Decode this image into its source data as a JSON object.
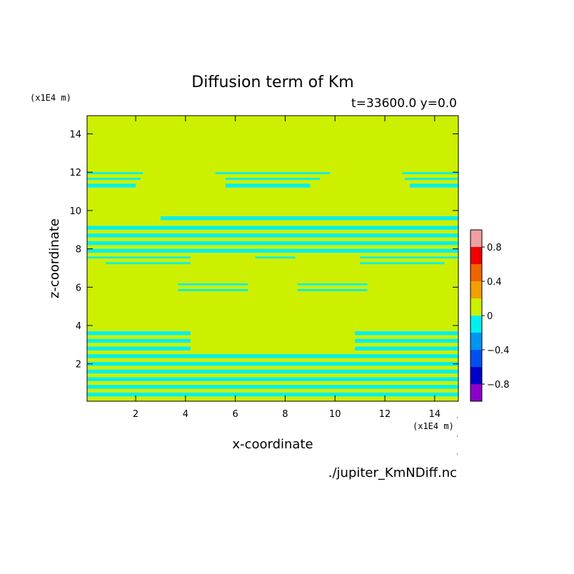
{
  "chart_data": {
    "type": "heatmap",
    "title": "Diffusion term of Km",
    "subtitle": "t=33600.0 y=0.0",
    "xlabel": "x-coordinate",
    "ylabel": "z-coordinate",
    "x_unit": "(x1E4 m)",
    "y_unit": "(x1E4 m)",
    "xlim": [
      0.05,
      14.95
    ],
    "ylim": [
      0.05,
      14.95
    ],
    "x_ticks": [
      2,
      4,
      6,
      8,
      10,
      12,
      14
    ],
    "y_ticks": [
      2,
      4,
      6,
      8,
      10,
      12,
      14
    ],
    "x_tick_labels": [
      "2",
      "4",
      "6",
      "8",
      "10",
      "12",
      "14"
    ],
    "y_tick_labels": [
      "2",
      "4",
      "6",
      "8",
      "10",
      "12",
      "14"
    ],
    "background_level_color": "#ccf000",
    "negative_level_color": "#00f0f0",
    "regions_negative": [
      {
        "x": [
          0.05,
          2.3
        ],
        "z": [
          11.9,
          12.0
        ]
      },
      {
        "x": [
          0.05,
          2.2
        ],
        "z": [
          11.6,
          11.7
        ]
      },
      {
        "x": [
          0.05,
          2.0
        ],
        "z": [
          11.2,
          11.4
        ]
      },
      {
        "x": [
          5.2,
          9.8
        ],
        "z": [
          11.9,
          12.0
        ]
      },
      {
        "x": [
          5.6,
          9.4
        ],
        "z": [
          11.6,
          11.7
        ]
      },
      {
        "x": [
          5.6,
          9.0
        ],
        "z": [
          11.2,
          11.4
        ]
      },
      {
        "x": [
          12.7,
          14.95
        ],
        "z": [
          11.9,
          12.0
        ]
      },
      {
        "x": [
          12.8,
          14.95
        ],
        "z": [
          11.6,
          11.7
        ]
      },
      {
        "x": [
          13.0,
          14.95
        ],
        "z": [
          11.2,
          11.4
        ]
      },
      {
        "x": [
          3.0,
          14.95
        ],
        "z": [
          9.5,
          9.7
        ]
      },
      {
        "x": [
          0.05,
          14.95
        ],
        "z": [
          9.0,
          9.2
        ]
      },
      {
        "x": [
          0.05,
          14.95
        ],
        "z": [
          8.6,
          8.8
        ]
      },
      {
        "x": [
          0.05,
          14.95
        ],
        "z": [
          8.2,
          8.4
        ]
      },
      {
        "x": [
          0.05,
          14.95
        ],
        "z": [
          7.8,
          8.0
        ]
      },
      {
        "x": [
          0.05,
          4.2
        ],
        "z": [
          7.5,
          7.6
        ]
      },
      {
        "x": [
          6.8,
          8.4
        ],
        "z": [
          7.5,
          7.6
        ]
      },
      {
        "x": [
          11.0,
          14.95
        ],
        "z": [
          7.5,
          7.6
        ]
      },
      {
        "x": [
          0.8,
          4.2
        ],
        "z": [
          7.2,
          7.3
        ]
      },
      {
        "x": [
          11.0,
          14.4
        ],
        "z": [
          7.2,
          7.3
        ]
      },
      {
        "x": [
          3.7,
          6.5
        ],
        "z": [
          6.1,
          6.2
        ]
      },
      {
        "x": [
          3.7,
          6.5
        ],
        "z": [
          5.8,
          5.9
        ]
      },
      {
        "x": [
          8.5,
          11.3
        ],
        "z": [
          6.1,
          6.2
        ]
      },
      {
        "x": [
          8.5,
          11.3
        ],
        "z": [
          5.8,
          5.9
        ]
      },
      {
        "x": [
          0.05,
          4.2
        ],
        "z": [
          3.5,
          3.7
        ]
      },
      {
        "x": [
          0.05,
          4.2
        ],
        "z": [
          3.1,
          3.3
        ]
      },
      {
        "x": [
          0.05,
          4.2
        ],
        "z": [
          2.7,
          2.9
        ]
      },
      {
        "x": [
          10.8,
          14.95
        ],
        "z": [
          3.5,
          3.7
        ]
      },
      {
        "x": [
          10.8,
          14.95
        ],
        "z": [
          3.1,
          3.3
        ]
      },
      {
        "x": [
          10.8,
          14.95
        ],
        "z": [
          2.7,
          2.9
        ]
      },
      {
        "x": [
          0.05,
          14.95
        ],
        "z": [
          2.3,
          2.5
        ]
      },
      {
        "x": [
          0.05,
          14.95
        ],
        "z": [
          1.9,
          2.1
        ]
      },
      {
        "x": [
          0.05,
          14.95
        ],
        "z": [
          1.5,
          1.7
        ]
      },
      {
        "x": [
          0.05,
          14.95
        ],
        "z": [
          1.1,
          1.3
        ]
      },
      {
        "x": [
          0.05,
          14.95
        ],
        "z": [
          0.7,
          0.9
        ]
      },
      {
        "x": [
          0.05,
          14.95
        ],
        "z": [
          0.3,
          0.5
        ]
      }
    ],
    "colorbar": {
      "levels": [
        {
          "from": -1.0,
          "to": -0.8,
          "color": "#8c00c8"
        },
        {
          "from": -0.8,
          "to": -0.6,
          "color": "#0000c8"
        },
        {
          "from": -0.6,
          "to": -0.4,
          "color": "#0050f0"
        },
        {
          "from": -0.4,
          "to": -0.2,
          "color": "#0096f0"
        },
        {
          "from": -0.2,
          "to": 0.0,
          "color": "#00f0f0"
        },
        {
          "from": 0.0,
          "to": 0.2,
          "color": "#ccf000"
        },
        {
          "from": 0.2,
          "to": 0.4,
          "color": "#f0a000"
        },
        {
          "from": 0.4,
          "to": 0.6,
          "color": "#f06400"
        },
        {
          "from": 0.6,
          "to": 0.8,
          "color": "#f00000"
        },
        {
          "from": 0.8,
          "to": 1.0,
          "color": "#f0a0a0"
        }
      ],
      "tick_values": [
        0.8,
        0.4,
        0,
        -0.4,
        -0.8
      ],
      "tick_labels": [
        "0.8",
        "0.4",
        "0",
        "−0.4",
        "−0.8"
      ]
    },
    "source_file": "./jupiter_KmNDiff.nc"
  }
}
